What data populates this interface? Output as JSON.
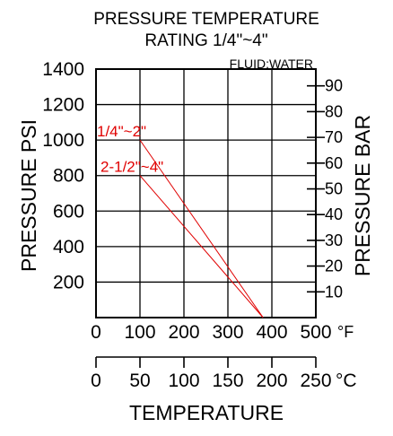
{
  "chart_data": {
    "type": "line",
    "title_line1": "PRESSURE TEMPERATURE",
    "title_line2": "RATING 1/4\"~4\"",
    "note": "FLUID:WATER",
    "ylabel_left": "PRESSURE PSI",
    "ylabel_right": "PRESSURE BAR",
    "xlabel": "TEMPERATURE",
    "x_unit_f": "°F",
    "x_unit_c": "°C",
    "ylim_psi": [
      0,
      1400
    ],
    "xlim_f": [
      0,
      500
    ],
    "xlim_c": [
      0,
      250
    ],
    "grid": true,
    "psi_ticks": [
      "200",
      "400",
      "600",
      "800",
      "1000",
      "1200",
      "1400"
    ],
    "bar_ticks": [
      "10",
      "20",
      "30",
      "40",
      "50",
      "60",
      "70",
      "80",
      "90"
    ],
    "f_ticks": [
      "0",
      "100",
      "200",
      "300",
      "400",
      "500"
    ],
    "c_ticks": [
      "0",
      "50",
      "100",
      "150",
      "200",
      "250"
    ],
    "series": [
      {
        "name": "1/4\"~2\"",
        "x": [
          100,
          380
        ],
        "y": [
          1000,
          0
        ],
        "color": "#e00000"
      },
      {
        "name": "2-1/2\"~4\"",
        "x": [
          100,
          380
        ],
        "y": [
          800,
          0
        ],
        "color": "#e00000"
      }
    ]
  }
}
